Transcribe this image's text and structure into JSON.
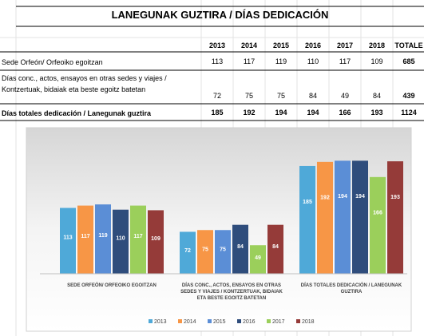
{
  "table": {
    "title": "LANEGUNAK GUZTIRA / DÍAS DEDICACIÓN",
    "columns": [
      "2013",
      "2014",
      "2015",
      "2016",
      "2017",
      "2018",
      "TOTALE"
    ],
    "rows": [
      {
        "label": "Sede Orfeón/ Orfeoiko egoitzan",
        "cells": [
          113,
          117,
          119,
          110,
          117,
          109,
          685
        ]
      },
      {
        "label": "Días conc., actos, ensayos en otras sedes  y viajes / Kontzertuak, bidaiak eta beste egoitz batetan",
        "cells": [
          72,
          75,
          75,
          84,
          49,
          84,
          439
        ]
      },
      {
        "label": "Días totales dedicación / Lanegunak guztira",
        "cells": [
          185,
          192,
          194,
          194,
          166,
          193,
          1124
        ]
      }
    ]
  },
  "chart_data": {
    "type": "bar",
    "categories": [
      "SEDE ORFEÓN/ ORFEOIKO EGOITZAN",
      "DÍAS CONC., ACTOS, ENSAYOS EN OTRAS SEDES  Y VIAJES / KONTZERTUAK, BIDAIAK ETA BESTE EGOITZ BATETAN",
      "DÍAS TOTALES DEDICACIÓN / LANEGUNAK GUZTIRA"
    ],
    "series": [
      {
        "name": "2013",
        "color": "#4fa9d8",
        "values": [
          113,
          72,
          185
        ]
      },
      {
        "name": "2014",
        "color": "#f79646",
        "values": [
          117,
          75,
          192
        ]
      },
      {
        "name": "2015",
        "color": "#5b8ed6",
        "values": [
          119,
          75,
          194
        ]
      },
      {
        "name": "2016",
        "color": "#2f4d7c",
        "values": [
          110,
          84,
          194
        ]
      },
      {
        "name": "2017",
        "color": "#9bcf5b",
        "values": [
          117,
          49,
          166
        ]
      },
      {
        "name": "2018",
        "color": "#953b39",
        "values": [
          109,
          84,
          193
        ]
      }
    ]
  }
}
